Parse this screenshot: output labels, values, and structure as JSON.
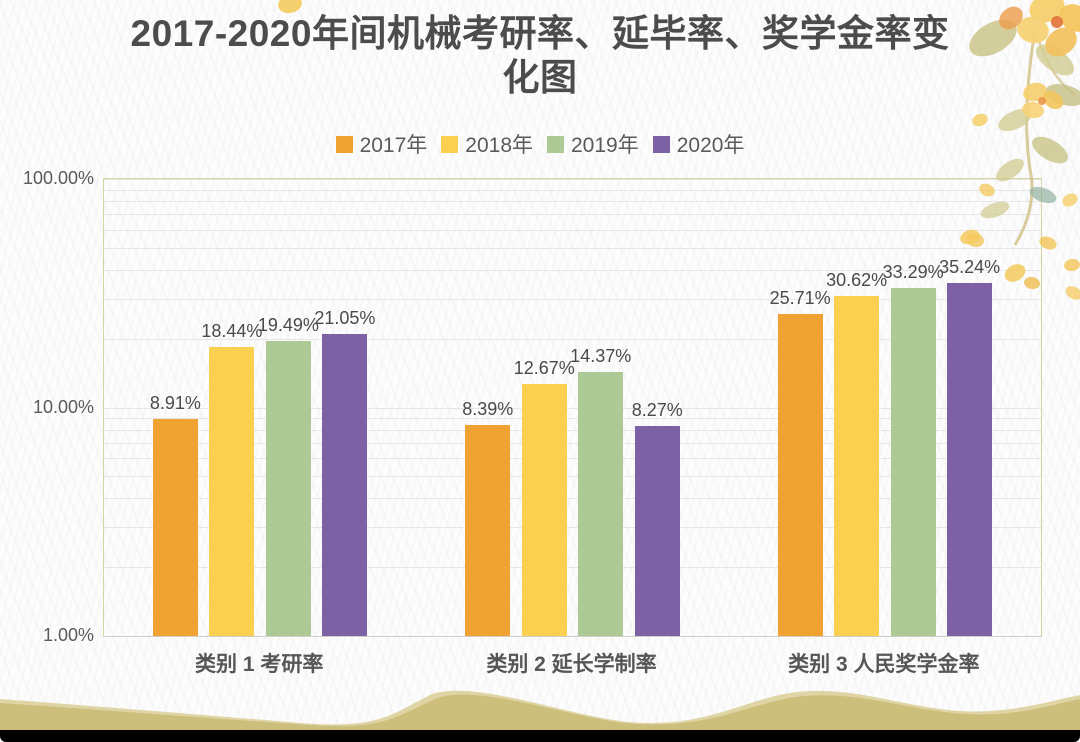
{
  "title": {
    "line1": "2017-2020年间机械考研率、延毕率、奖学金率变",
    "line2": "化图"
  },
  "chart_data": {
    "type": "bar",
    "title": "2017-2020年间机械考研率、延毕率、奖学金率变化图",
    "categories": [
      "类别 1 考研率",
      "类别 2 延长学制率",
      "类别 3 人民奖学金率"
    ],
    "series": [
      {
        "name": "2017年",
        "color": "#F0A233",
        "values": [
          8.91,
          8.39,
          25.71
        ],
        "labels": [
          "8.91%",
          "8.39%",
          "25.71%"
        ]
      },
      {
        "name": "2018年",
        "color": "#F9D04F",
        "values": [
          18.44,
          12.67,
          30.62
        ],
        "labels": [
          "18.44%",
          "12.67%",
          "30.62%"
        ]
      },
      {
        "name": "2019年",
        "color": "#ADCA96",
        "values": [
          19.49,
          14.37,
          33.29
        ],
        "labels": [
          "19.49%",
          "14.37%",
          "33.29%"
        ]
      },
      {
        "name": "2020年",
        "color": "#7C62A4",
        "values": [
          21.05,
          8.27,
          35.24
        ],
        "labels": [
          "21.05%",
          "8.27%",
          "35.24%"
        ]
      }
    ],
    "y_axis": {
      "scale": "log",
      "min": 1,
      "max": 100,
      "unit": "%",
      "ticks": [
        {
          "label": "100.00%",
          "value": 100
        },
        {
          "label": "10.00%",
          "value": 10
        },
        {
          "label": "1.00%",
          "value": 1
        }
      ]
    },
    "grid": "horizontal minor log gridlines (2-9, 20-90) plus decade lines",
    "legend_position": "top-center",
    "data_label_format": "0.00%"
  },
  "style_colors": {
    "title_text": "#4c4c4c",
    "legend_text": "#5a5a5a",
    "axis_text": "#5a5a5a",
    "category_text": "#565656",
    "data_label_text": "#4a4a4a",
    "plot_border": "#d7d3a2",
    "gridline": "#e6e6e4",
    "wave_sand_light": "#dbd09a",
    "wave_sand_dark": "#c9ba74",
    "bottom_bar": "#010101"
  }
}
